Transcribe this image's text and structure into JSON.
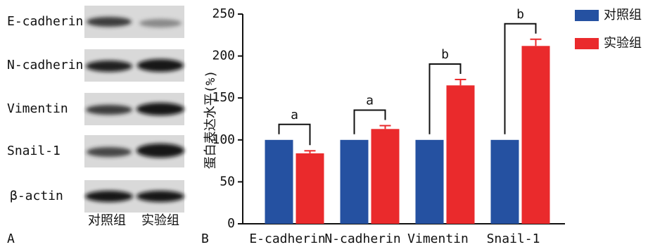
{
  "panels": [
    "A",
    "B"
  ],
  "blot": {
    "rows": [
      "E-cadherin",
      "N-cadherin",
      "Vimentin",
      "Snail-1",
      "β-actin"
    ],
    "columns": [
      "对照组",
      "实验组"
    ]
  },
  "chart_data": {
    "type": "bar",
    "y_label": "蛋白表达水平(%)",
    "categories": [
      "E-cadherin",
      "N-cadherin",
      "Vimentin",
      "Snail-1"
    ],
    "series": [
      {
        "name": "对照组",
        "color": "#2551a1",
        "values": [
          100,
          100,
          100,
          100
        ]
      },
      {
        "name": "实验组",
        "color": "#ea2a2c",
        "values": [
          84,
          113,
          165,
          212
        ],
        "errors": [
          3,
          4,
          7,
          8
        ]
      }
    ],
    "annotations": [
      "a",
      "a",
      "b",
      "b"
    ],
    "ylim": [
      0,
      250
    ],
    "yticks": [
      0,
      50,
      100,
      150,
      200,
      250
    ],
    "legend": "top-right"
  }
}
